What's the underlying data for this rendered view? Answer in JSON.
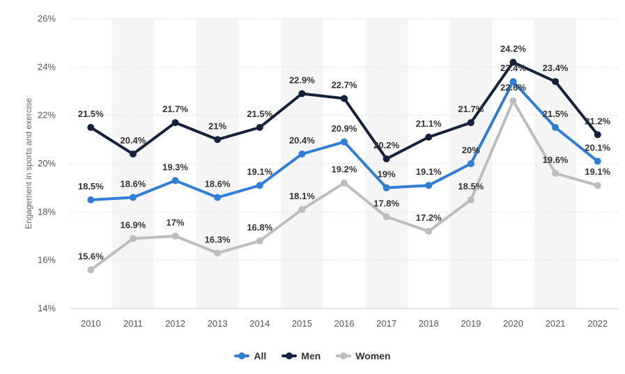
{
  "chart_data": {
    "type": "line",
    "title": "",
    "xlabel": "",
    "ylabel": "Engagement in sports and exercise",
    "categories": [
      "2010",
      "2011",
      "2012",
      "2013",
      "2014",
      "2015",
      "2016",
      "2017",
      "2018",
      "2019",
      "2020",
      "2021",
      "2022"
    ],
    "y_ticks": [
      "14%",
      "16%",
      "18%",
      "20%",
      "22%",
      "24%",
      "26%"
    ],
    "ylim": [
      14,
      26
    ],
    "y_unit": "%",
    "grid": "horizontal dashed",
    "alternating_column_bands": true,
    "legend_position": "bottom",
    "series": [
      {
        "name": "All",
        "color": "#2f7ed8",
        "values": [
          18.5,
          18.6,
          19.3,
          18.6,
          19.1,
          20.4,
          20.9,
          19.0,
          19.1,
          20.0,
          23.4,
          21.5,
          20.1
        ],
        "labels": [
          "18.5%",
          "18.6%",
          "19.3%",
          "18.6%",
          "19.1%",
          "20.4%",
          "20.9%",
          "19%",
          "19.1%",
          "20%",
          "23.4%",
          "21.5%",
          "20.1%"
        ]
      },
      {
        "name": "Men",
        "color": "#15223b",
        "values": [
          21.5,
          20.4,
          21.7,
          21.0,
          21.5,
          22.9,
          22.7,
          20.2,
          21.1,
          21.7,
          24.2,
          23.4,
          21.2
        ],
        "labels": [
          "21.5%",
          "20.4%",
          "21.7%",
          "21%",
          "21.5%",
          "22.9%",
          "22.7%",
          "20.2%",
          "21.1%",
          "21.7%",
          "24.2%",
          "23.4%",
          "21.2%"
        ]
      },
      {
        "name": "Women",
        "color": "#bdbdbd",
        "values": [
          15.6,
          16.9,
          17.0,
          16.3,
          16.8,
          18.1,
          19.2,
          17.8,
          17.2,
          18.5,
          22.6,
          19.6,
          19.1
        ],
        "labels": [
          "15.6%",
          "16.9%",
          "17%",
          "16.3%",
          "16.8%",
          "18.1%",
          "19.2%",
          "17.8%",
          "17.2%",
          "18.5%",
          "22.6%",
          "19.6%",
          "19.1%"
        ]
      }
    ]
  },
  "legend": {
    "items": [
      {
        "label": "All",
        "color": "#2f7ed8"
      },
      {
        "label": "Men",
        "color": "#15223b"
      },
      {
        "label": "Women",
        "color": "#bdbdbd"
      }
    ]
  }
}
